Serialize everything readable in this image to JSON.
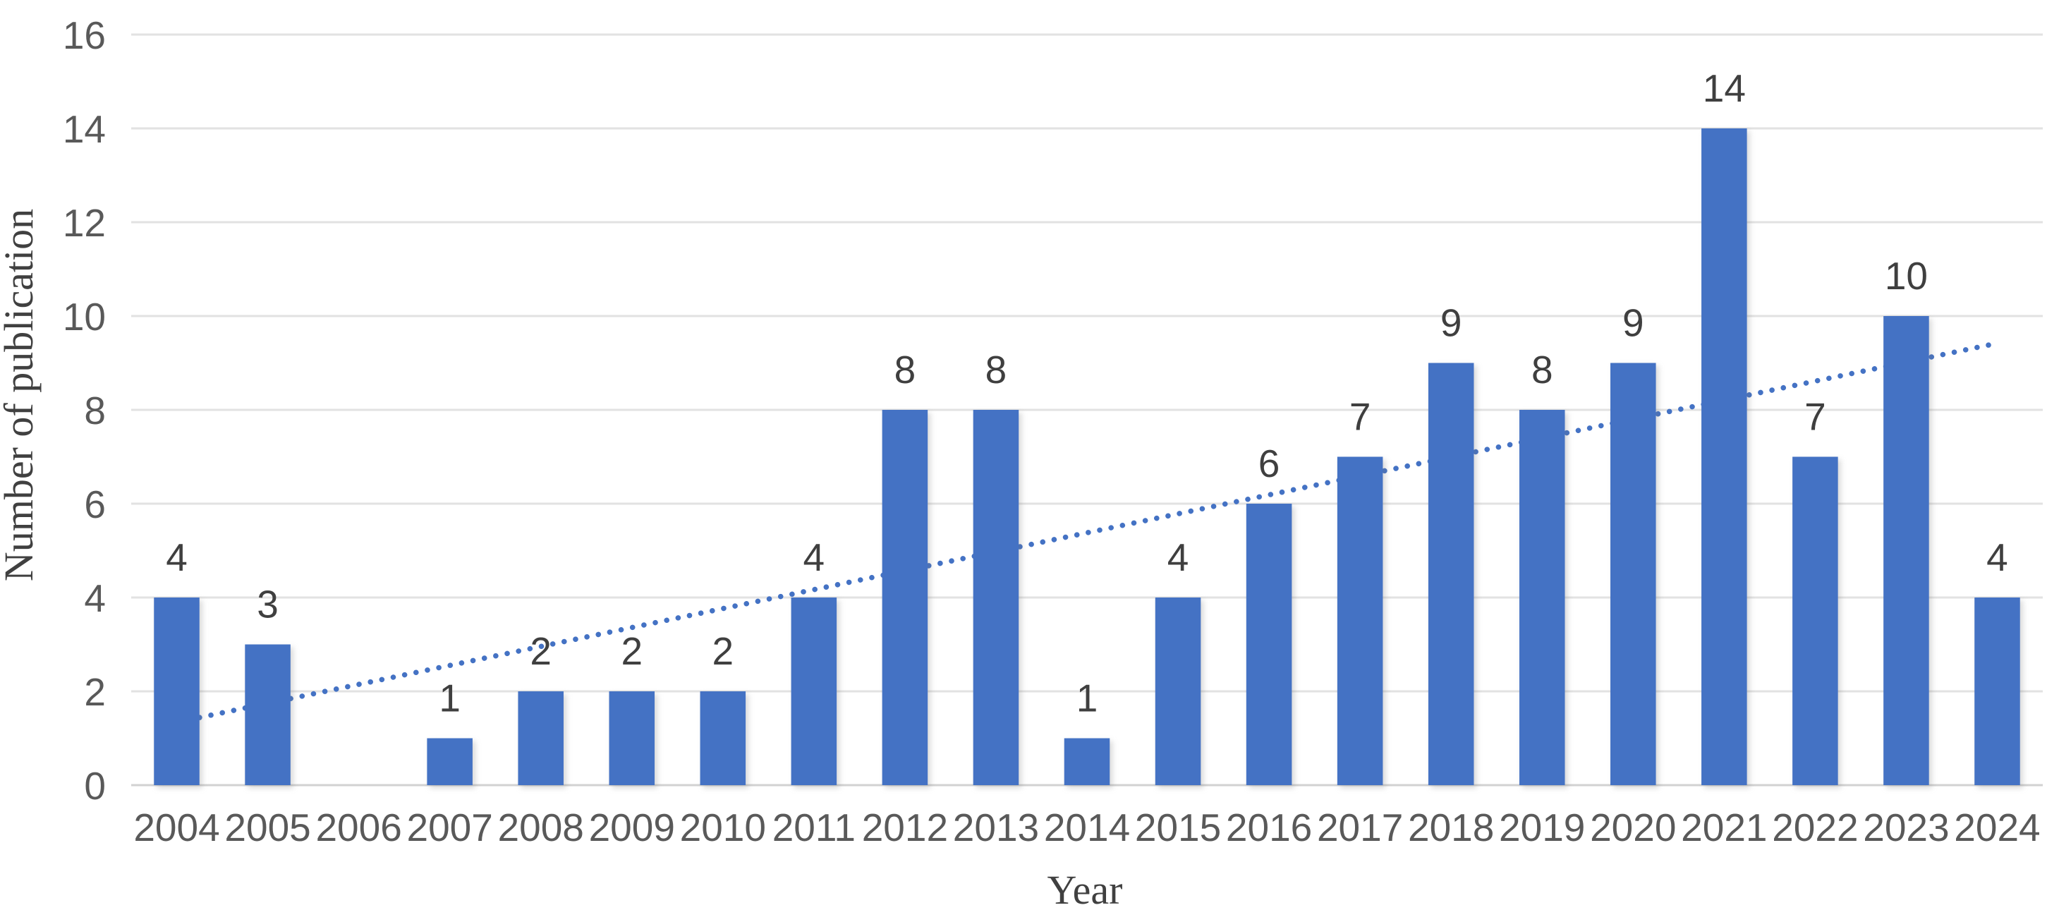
{
  "chart_data": {
    "type": "bar",
    "title": "",
    "xlabel": "Year",
    "ylabel": "Number of publication",
    "categories": [
      "2004",
      "2005",
      "2006",
      "2007",
      "2008",
      "2009",
      "2010",
      "2011",
      "2012",
      "2013",
      "2014",
      "2015",
      "2016",
      "2017",
      "2018",
      "2019",
      "2020",
      "2021",
      "2022",
      "2023",
      "2024"
    ],
    "values": [
      4,
      3,
      0,
      1,
      2,
      2,
      2,
      4,
      8,
      8,
      1,
      4,
      6,
      7,
      9,
      8,
      9,
      14,
      7,
      10,
      4
    ],
    "ylim": [
      0,
      16
    ],
    "y_ticks": [
      0,
      2,
      4,
      6,
      8,
      10,
      12,
      14,
      16
    ],
    "grid": true,
    "legend": "none",
    "bar_color": "#4472C4",
    "gridline_color": "#e2e2e2",
    "tick_label_color": "#595959",
    "value_label_color": "#3f3f3f",
    "trendline": {
      "type": "linear",
      "style": "dotted",
      "color": "#4472C4",
      "start_value": 1.34,
      "end_value": 9.42
    }
  }
}
